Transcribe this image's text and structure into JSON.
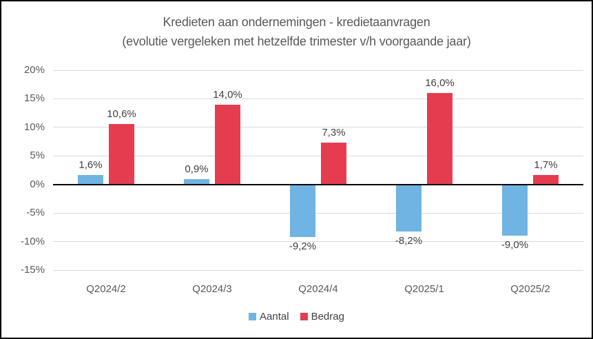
{
  "chart_data": {
    "type": "bar",
    "title": "Kredieten aan ondernemingen - kredietaanvragen",
    "subtitle": "(evolutie vergeleken met hetzelfde trimester v/h voorgaande jaar)",
    "categories": [
      "Q2024/2",
      "Q2024/3",
      "Q2024/4",
      "Q2025/1",
      "Q2025/2"
    ],
    "series": [
      {
        "name": "Aantal",
        "color": "#6FB4E2",
        "values": [
          1.6,
          0.9,
          -9.2,
          -8.2,
          -9.0
        ],
        "labels": [
          "1,6%",
          "0,9%",
          "-9,2%",
          "-8,2%",
          "-9,0%"
        ]
      },
      {
        "name": "Bedrag",
        "color": "#E63C50",
        "values": [
          10.6,
          14.0,
          7.3,
          16.0,
          1.7
        ],
        "labels": [
          "10,6%",
          "14,0%",
          "7,3%",
          "16,0%",
          "1,7%"
        ]
      }
    ],
    "ylim": [
      -15,
      20
    ],
    "yticks": [
      {
        "value": 20,
        "label": "20%"
      },
      {
        "value": 15,
        "label": "15%"
      },
      {
        "value": 10,
        "label": "10%"
      },
      {
        "value": 5,
        "label": "5%"
      },
      {
        "value": 0,
        "label": "0%"
      },
      {
        "value": -5,
        "label": "-5%"
      },
      {
        "value": -10,
        "label": "-10%"
      },
      {
        "value": -15,
        "label": "-15%"
      }
    ],
    "grid": true,
    "legend_position": "bottom",
    "colors": {
      "title_text": "#595959",
      "axis_text": "#595959",
      "data_label": "#404040",
      "gridline": "#D9D9D9",
      "zero_line": "#000000",
      "background": "#FFFFFF",
      "border": "#000000"
    }
  }
}
